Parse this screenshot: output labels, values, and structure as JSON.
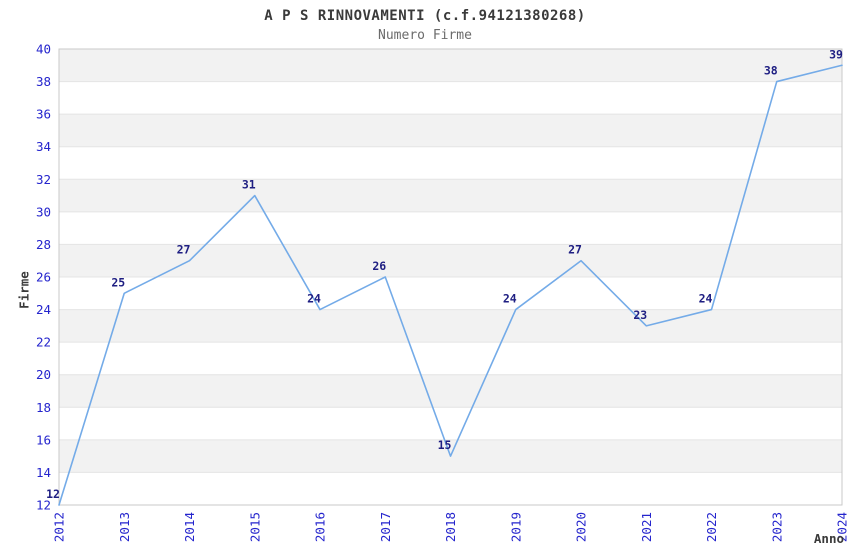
{
  "title": "A P S RINNOVAMENTI (c.f.94121380268)",
  "subtitle": "Numero Firme",
  "chart_data": {
    "type": "line",
    "title": "A P S RINNOVAMENTI (c.f.94121380268)",
    "subtitle": "Numero Firme",
    "xlabel": "Anno",
    "ylabel": "Firme",
    "x": [
      2012,
      2013,
      2014,
      2015,
      2016,
      2017,
      2018,
      2019,
      2020,
      2021,
      2022,
      2023,
      2024
    ],
    "series": [
      {
        "name": "Numero Firme",
        "values": [
          12,
          25,
          27,
          31,
          24,
          26,
          15,
          24,
          27,
          23,
          24,
          38,
          39
        ]
      }
    ],
    "ylim": [
      12,
      40
    ],
    "ytick_step": 2,
    "grid": "horizontal alternating bands",
    "legend_position": "none",
    "point_labels_visible": true
  },
  "colors": {
    "line": "#74abe8",
    "tick_label": "#2525cd",
    "point_label": "#1e1e82",
    "band_fill": "#f2f2f2",
    "gridline": "#e4e4e4",
    "plot_border": "#c9c9c9",
    "title_text": "#3a3a3a",
    "subtitle_text": "#6b6b6b",
    "background": "#ffffff"
  }
}
